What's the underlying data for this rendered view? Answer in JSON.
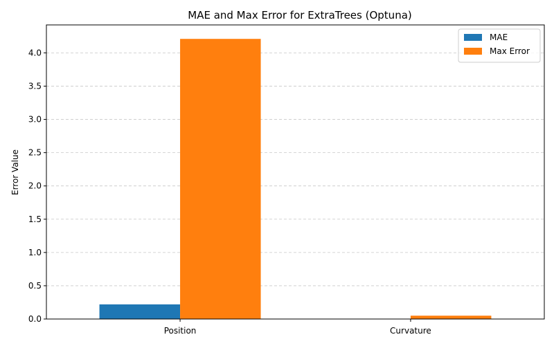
{
  "chart_data": {
    "type": "bar",
    "title": "MAE and Max Error for ExtraTrees (Optuna)",
    "xlabel": "",
    "ylabel": "Error Value",
    "categories": [
      "Position",
      "Curvature"
    ],
    "series": [
      {
        "name": "MAE",
        "values": [
          0.22,
          0.003
        ],
        "color": "#1f77b4"
      },
      {
        "name": "Max Error",
        "values": [
          4.21,
          0.05
        ],
        "color": "#ff7f0e"
      }
    ],
    "ylim": [
      0,
      4.42
    ],
    "yticks": [
      "0.0",
      "0.5",
      "1.0",
      "1.5",
      "2.0",
      "2.5",
      "3.0",
      "3.5",
      "4.0"
    ],
    "grid": "y-dashed",
    "legend_position": "top-right"
  }
}
